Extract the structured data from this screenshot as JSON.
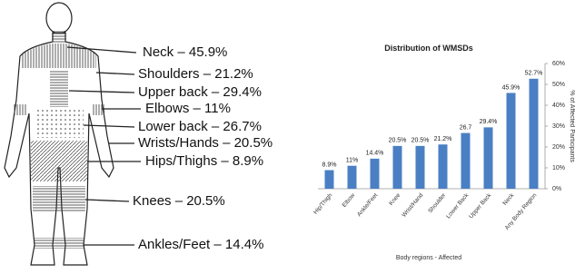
{
  "body_diagram": {
    "labels": [
      "Neck – 45.9%",
      "Shoulders – 21.2%",
      "Upper back – 29.4%",
      "Elbows – 11%",
      "Lower back – 26.7%",
      "Wrists/Hands – 20.5%",
      "Hips/Thighs – 8.9%",
      "Knees – 20.5%",
      "Ankles/Feet – 14.4%"
    ]
  },
  "chart_data": {
    "type": "bar",
    "title": "Distribution  of WMSDs",
    "x_label": "Body regions - Affected",
    "y_label": "% of Affected Participants",
    "categories": [
      "Hip/Thigh",
      "Elbow",
      "Ankle/Feet",
      "Knee",
      "Wrist/Hand",
      "Shoulder",
      "Lower Back",
      "Upper Back",
      "Neck",
      "Any Body Region"
    ],
    "values": [
      8.9,
      11,
      14.4,
      20.5,
      20.5,
      21.2,
      26.7,
      29.4,
      45.9,
      52.7
    ],
    "value_labels": [
      "8.9%",
      "11%",
      "14.4%",
      "20.5%",
      "20.5%",
      "21.2%",
      "26.7",
      "29.4%",
      "45.9%",
      "52.7%"
    ],
    "color": "#4a7fc4",
    "ylim": [
      0,
      60
    ],
    "yticks": [
      {
        "value": 0,
        "label": "0%"
      },
      {
        "value": 10,
        "label": "10%"
      },
      {
        "value": 20,
        "label": "20%"
      },
      {
        "value": 30,
        "label": "30%"
      },
      {
        "value": 40,
        "label": "40%"
      },
      {
        "value": 50,
        "label": "50%"
      },
      {
        "value": 60,
        "label": "60%"
      }
    ],
    "y_axis_side": "right"
  }
}
